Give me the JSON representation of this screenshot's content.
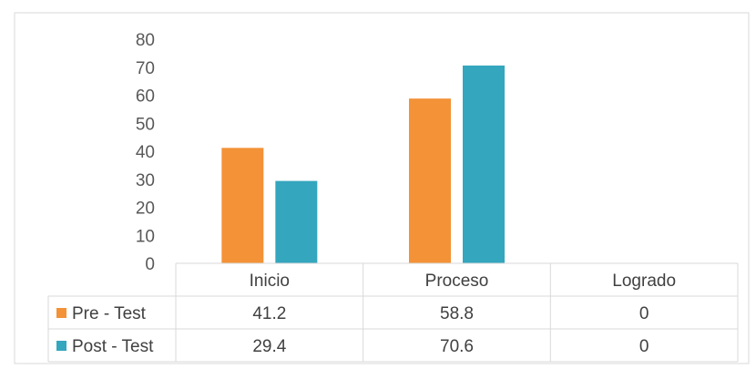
{
  "chart_data": {
    "type": "bar",
    "categories": [
      "Inicio",
      "Proceso",
      "Logrado"
    ],
    "series": [
      {
        "name": "Pre - Test",
        "values": [
          41.2,
          58.8,
          0
        ],
        "display": [
          "41.2",
          "58.8",
          "0"
        ],
        "color": "#f39237"
      },
      {
        "name": "Post - Test",
        "values": [
          29.4,
          70.6,
          0
        ],
        "display": [
          "29.4",
          "70.6",
          "0"
        ],
        "color": "#34a6be"
      }
    ],
    "yticks": [
      "0",
      "10",
      "20",
      "30",
      "40",
      "50",
      "60",
      "70",
      "80"
    ],
    "ylim": [
      0,
      80
    ],
    "grid": false,
    "legend": "data-table",
    "title": "",
    "xlabel": "",
    "ylabel": ""
  }
}
